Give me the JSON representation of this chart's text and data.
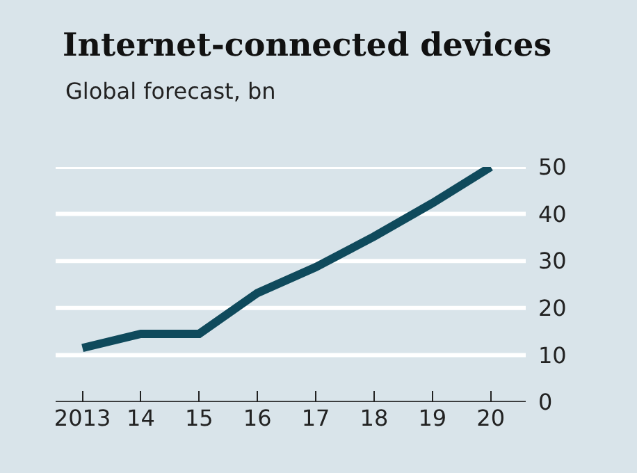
{
  "chart_data": {
    "type": "line",
    "title": "Internet-connected devices",
    "subtitle": "Global forecast, bn",
    "x": [
      2013,
      2014,
      2015,
      2016,
      2017,
      2018,
      2019,
      2020
    ],
    "series": [
      {
        "color": "#0f4a5c",
        "values": [
          11.5,
          14.5,
          14.5,
          23.2,
          28.7,
          35.2,
          42.3,
          50
        ]
      }
    ],
    "xlim": [
      2012.54,
      2020.6
    ],
    "xticks": [
      {
        "value": 2013,
        "label": "2013"
      },
      {
        "value": 2014,
        "label": "14"
      },
      {
        "value": 2015,
        "label": "15"
      },
      {
        "value": 2016,
        "label": "16"
      },
      {
        "value": 2017,
        "label": "17"
      },
      {
        "value": 2018,
        "label": "18"
      },
      {
        "value": 2019,
        "label": "19"
      },
      {
        "value": 2020,
        "label": "20"
      }
    ],
    "ylim": [
      0,
      50
    ],
    "yticks": [
      0,
      10,
      20,
      30,
      40,
      50
    ],
    "grid": "y",
    "marker": "none",
    "line_style": "solid"
  }
}
